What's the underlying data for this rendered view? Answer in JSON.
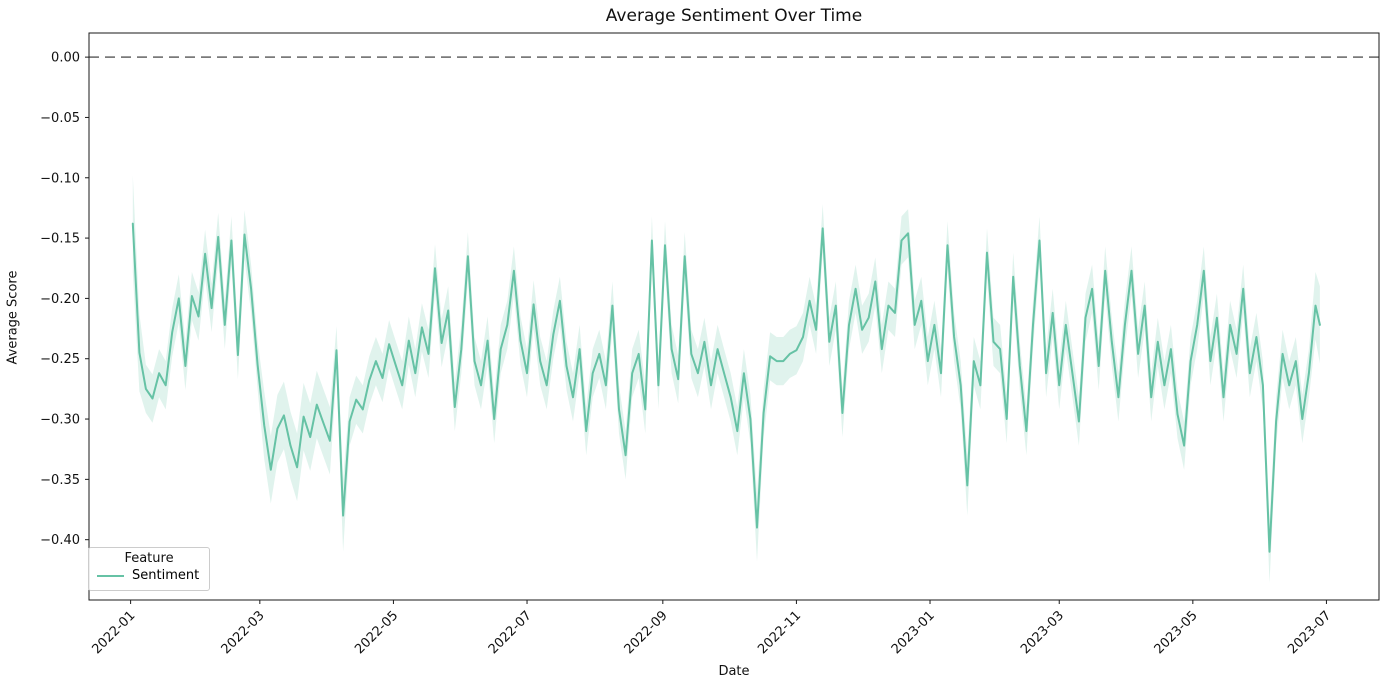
{
  "figure": {
    "title": "Average Sentiment Over Time",
    "xlabel": "Date",
    "ylabel": "Average Score"
  },
  "legend": {
    "title": "Feature",
    "entries": [
      {
        "label": "Sentiment",
        "color": "#66c2a5"
      }
    ],
    "position": "lower left"
  },
  "chart_data": {
    "type": "line",
    "title": "Average Sentiment Over Time",
    "xlabel": "Date",
    "ylabel": "Average Score",
    "grid": false,
    "x_unit": "days since 2022-01-01",
    "xlim_days": [
      -19,
      570
    ],
    "ylim": [
      -0.45,
      0.02
    ],
    "x_tick_days": [
      0,
      59,
      120,
      181,
      243,
      304,
      365,
      424,
      485,
      546
    ],
    "x_tick_labels": [
      "2022-01",
      "2022-03",
      "2022-05",
      "2022-07",
      "2022-09",
      "2022-11",
      "2023-01",
      "2023-03",
      "2023-05",
      "2023-07"
    ],
    "y_tick_values": [
      0,
      -0.05,
      -0.1,
      -0.15,
      -0.2,
      -0.25,
      -0.3,
      -0.35,
      -0.4
    ],
    "y_tick_labels": [
      "0.00",
      "−0.05",
      "−0.10",
      "−0.15",
      "−0.20",
      "−0.25",
      "−0.30",
      "−0.35",
      "−0.40"
    ],
    "zero_line": {
      "value": 0.0,
      "style": "dashed",
      "color": "#7a7a7a"
    },
    "series": [
      {
        "name": "Sentiment",
        "color": "#66c2a5",
        "band_alpha": 0.2,
        "band_halfwidth_default": 0.02,
        "band_halfwidth_overrides": {
          "1": 0.04,
          "4": 0.032,
          "61": 0.028,
          "64": 0.028,
          "67": 0.028,
          "70": 0.028,
          "73": 0.028,
          "76": 0.028,
          "79": 0.028,
          "82": 0.028,
          "85": 0.028,
          "88": 0.028,
          "91": 0.028,
          "97": 0.03,
          "286": 0.028,
          "382": 0.025,
          "520": 0.026,
          "541": 0.028,
          "543": 0.032
        },
        "points": [
          [
            1,
            -0.138
          ],
          [
            4,
            -0.245
          ],
          [
            7,
            -0.275
          ],
          [
            10,
            -0.283
          ],
          [
            13,
            -0.262
          ],
          [
            16,
            -0.272
          ],
          [
            19,
            -0.228
          ],
          [
            22,
            -0.2
          ],
          [
            25,
            -0.256
          ],
          [
            28,
            -0.198
          ],
          [
            31,
            -0.215
          ],
          [
            34,
            -0.163
          ],
          [
            37,
            -0.208
          ],
          [
            40,
            -0.149
          ],
          [
            43,
            -0.222
          ],
          [
            46,
            -0.152
          ],
          [
            49,
            -0.247
          ],
          [
            52,
            -0.147
          ],
          [
            55,
            -0.192
          ],
          [
            58,
            -0.255
          ],
          [
            61,
            -0.305
          ],
          [
            64,
            -0.342
          ],
          [
            67,
            -0.308
          ],
          [
            70,
            -0.297
          ],
          [
            73,
            -0.322
          ],
          [
            76,
            -0.34
          ],
          [
            79,
            -0.298
          ],
          [
            82,
            -0.315
          ],
          [
            85,
            -0.288
          ],
          [
            88,
            -0.303
          ],
          [
            91,
            -0.318
          ],
          [
            94,
            -0.243
          ],
          [
            97,
            -0.38
          ],
          [
            100,
            -0.302
          ],
          [
            103,
            -0.284
          ],
          [
            106,
            -0.292
          ],
          [
            109,
            -0.268
          ],
          [
            112,
            -0.252
          ],
          [
            115,
            -0.266
          ],
          [
            118,
            -0.238
          ],
          [
            121,
            -0.255
          ],
          [
            124,
            -0.272
          ],
          [
            127,
            -0.235
          ],
          [
            130,
            -0.262
          ],
          [
            133,
            -0.224
          ],
          [
            136,
            -0.246
          ],
          [
            139,
            -0.175
          ],
          [
            142,
            -0.237
          ],
          [
            145,
            -0.21
          ],
          [
            148,
            -0.29
          ],
          [
            151,
            -0.242
          ],
          [
            154,
            -0.165
          ],
          [
            157,
            -0.252
          ],
          [
            160,
            -0.272
          ],
          [
            163,
            -0.235
          ],
          [
            166,
            -0.3
          ],
          [
            169,
            -0.242
          ],
          [
            172,
            -0.222
          ],
          [
            175,
            -0.177
          ],
          [
            178,
            -0.235
          ],
          [
            181,
            -0.262
          ],
          [
            184,
            -0.205
          ],
          [
            187,
            -0.252
          ],
          [
            190,
            -0.272
          ],
          [
            193,
            -0.23
          ],
          [
            196,
            -0.202
          ],
          [
            199,
            -0.256
          ],
          [
            202,
            -0.282
          ],
          [
            205,
            -0.242
          ],
          [
            208,
            -0.31
          ],
          [
            211,
            -0.262
          ],
          [
            214,
            -0.246
          ],
          [
            217,
            -0.272
          ],
          [
            220,
            -0.206
          ],
          [
            223,
            -0.292
          ],
          [
            226,
            -0.33
          ],
          [
            229,
            -0.262
          ],
          [
            232,
            -0.246
          ],
          [
            235,
            -0.292
          ],
          [
            238,
            -0.152
          ],
          [
            241,
            -0.272
          ],
          [
            244,
            -0.156
          ],
          [
            247,
            -0.242
          ],
          [
            250,
            -0.267
          ],
          [
            253,
            -0.165
          ],
          [
            256,
            -0.246
          ],
          [
            259,
            -0.262
          ],
          [
            262,
            -0.236
          ],
          [
            265,
            -0.272
          ],
          [
            268,
            -0.242
          ],
          [
            271,
            -0.262
          ],
          [
            274,
            -0.282
          ],
          [
            277,
            -0.31
          ],
          [
            280,
            -0.262
          ],
          [
            283,
            -0.3
          ],
          [
            286,
            -0.39
          ],
          [
            289,
            -0.295
          ],
          [
            292,
            -0.248
          ],
          [
            295,
            -0.252
          ],
          [
            298,
            -0.252
          ],
          [
            301,
            -0.246
          ],
          [
            304,
            -0.243
          ],
          [
            307,
            -0.232
          ],
          [
            310,
            -0.202
          ],
          [
            313,
            -0.226
          ],
          [
            316,
            -0.142
          ],
          [
            319,
            -0.236
          ],
          [
            322,
            -0.206
          ],
          [
            325,
            -0.295
          ],
          [
            328,
            -0.222
          ],
          [
            331,
            -0.192
          ],
          [
            334,
            -0.226
          ],
          [
            337,
            -0.216
          ],
          [
            340,
            -0.186
          ],
          [
            343,
            -0.242
          ],
          [
            346,
            -0.206
          ],
          [
            349,
            -0.212
          ],
          [
            352,
            -0.152
          ],
          [
            355,
            -0.146
          ],
          [
            358,
            -0.222
          ],
          [
            361,
            -0.202
          ],
          [
            364,
            -0.252
          ],
          [
            367,
            -0.222
          ],
          [
            370,
            -0.262
          ],
          [
            373,
            -0.156
          ],
          [
            376,
            -0.232
          ],
          [
            379,
            -0.272
          ],
          [
            382,
            -0.355
          ],
          [
            385,
            -0.252
          ],
          [
            388,
            -0.272
          ],
          [
            391,
            -0.162
          ],
          [
            394,
            -0.236
          ],
          [
            397,
            -0.242
          ],
          [
            400,
            -0.3
          ],
          [
            403,
            -0.182
          ],
          [
            406,
            -0.256
          ],
          [
            409,
            -0.31
          ],
          [
            412,
            -0.222
          ],
          [
            415,
            -0.152
          ],
          [
            418,
            -0.262
          ],
          [
            421,
            -0.212
          ],
          [
            424,
            -0.272
          ],
          [
            427,
            -0.222
          ],
          [
            430,
            -0.262
          ],
          [
            433,
            -0.302
          ],
          [
            436,
            -0.216
          ],
          [
            439,
            -0.192
          ],
          [
            442,
            -0.256
          ],
          [
            445,
            -0.177
          ],
          [
            448,
            -0.236
          ],
          [
            451,
            -0.282
          ],
          [
            454,
            -0.222
          ],
          [
            457,
            -0.177
          ],
          [
            460,
            -0.246
          ],
          [
            463,
            -0.206
          ],
          [
            466,
            -0.282
          ],
          [
            469,
            -0.236
          ],
          [
            472,
            -0.272
          ],
          [
            475,
            -0.242
          ],
          [
            478,
            -0.296
          ],
          [
            481,
            -0.322
          ],
          [
            484,
            -0.252
          ],
          [
            487,
            -0.222
          ],
          [
            490,
            -0.177
          ],
          [
            493,
            -0.252
          ],
          [
            496,
            -0.216
          ],
          [
            499,
            -0.282
          ],
          [
            502,
            -0.222
          ],
          [
            505,
            -0.246
          ],
          [
            508,
            -0.192
          ],
          [
            511,
            -0.262
          ],
          [
            514,
            -0.232
          ],
          [
            517,
            -0.272
          ],
          [
            520,
            -0.41
          ],
          [
            523,
            -0.302
          ],
          [
            526,
            -0.246
          ],
          [
            529,
            -0.272
          ],
          [
            532,
            -0.252
          ],
          [
            535,
            -0.3
          ],
          [
            538,
            -0.262
          ],
          [
            541,
            -0.206
          ],
          [
            543,
            -0.222
          ]
        ]
      }
    ]
  }
}
